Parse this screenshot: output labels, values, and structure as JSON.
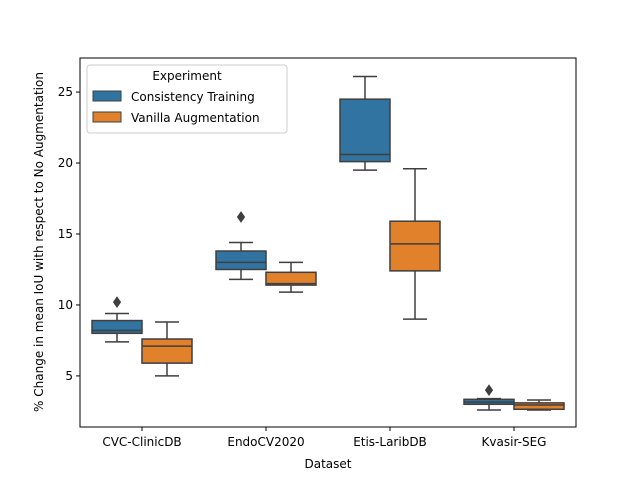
{
  "chart_data": {
    "type": "boxplot",
    "xlabel": "Dataset",
    "ylabel": "% Change in mean IoU with respect to No Augmentation",
    "categories": [
      "CVC-ClinicDB",
      "EndoCV2020",
      "Etis-LaribDB",
      "Kvasir-SEG"
    ],
    "ylim": [
      1.4,
      27.4
    ],
    "yticks": [
      5,
      10,
      15,
      20,
      25
    ],
    "legend": {
      "title": "Experiment",
      "placement": "top-left"
    },
    "series": [
      {
        "name": "Consistency Training",
        "color": "#3274a1",
        "boxes": [
          {
            "whisker_low": 7.4,
            "q1": 8.0,
            "median": 8.2,
            "q3": 8.9,
            "whisker_high": 9.4,
            "outliers": [
              10.2
            ]
          },
          {
            "whisker_low": 11.8,
            "q1": 12.5,
            "median": 13.0,
            "q3": 13.8,
            "whisker_high": 14.4,
            "outliers": [
              16.2
            ]
          },
          {
            "whisker_low": 19.5,
            "q1": 20.1,
            "median": 20.6,
            "q3": 24.5,
            "whisker_high": 26.1,
            "outliers": []
          },
          {
            "whisker_low": 2.6,
            "q1": 3.0,
            "median": 3.15,
            "q3": 3.35,
            "whisker_high": 3.4,
            "outliers": [
              4.0
            ]
          }
        ]
      },
      {
        "name": "Vanilla Augmentation",
        "color": "#e1812c",
        "boxes": [
          {
            "whisker_low": 5.0,
            "q1": 5.9,
            "median": 7.1,
            "q3": 7.6,
            "whisker_high": 8.8,
            "outliers": []
          },
          {
            "whisker_low": 10.9,
            "q1": 11.4,
            "median": 11.5,
            "q3": 12.3,
            "whisker_high": 13.0,
            "outliers": []
          },
          {
            "whisker_low": 9.0,
            "q1": 12.4,
            "median": 14.3,
            "q3": 15.9,
            "whisker_high": 19.6,
            "outliers": []
          },
          {
            "whisker_low": 2.6,
            "q1": 2.65,
            "median": 2.95,
            "q3": 3.1,
            "whisker_high": 3.3,
            "outliers": []
          }
        ]
      }
    ]
  }
}
